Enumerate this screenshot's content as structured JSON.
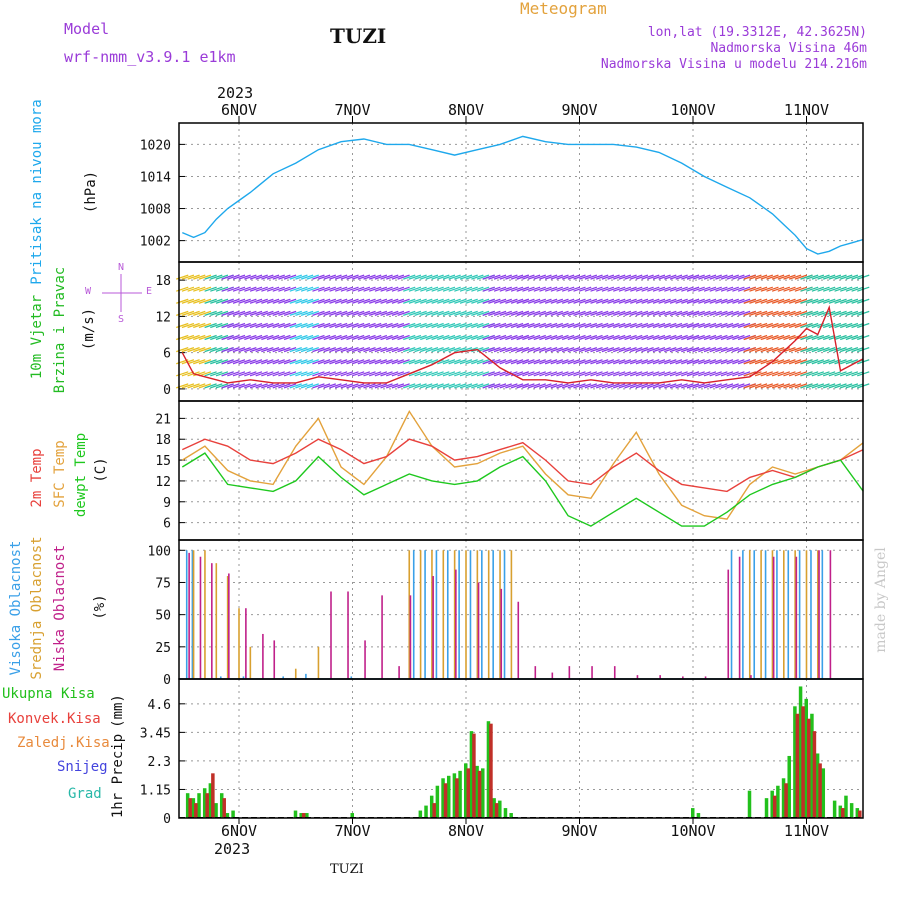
{
  "header": {
    "model_label": "Model",
    "model_name": "wrf-nmm_v3.9.1  e1km",
    "title": "TUZI",
    "chart_title": "Meteogram",
    "lonlat": "lon,lat (19.3312E, 42.3625N)",
    "altitude": "Nadmorska Visina 46m",
    "model_altitude": "Nadmorska Visina u modelu 214.216m"
  },
  "footer": {
    "station": "TUZI",
    "watermark": "made by Angel"
  },
  "colors": {
    "pressure": "#1ea8ec",
    "temp2m": "#e8413c",
    "sfc": "#e3a23c",
    "dewpt": "#1ec81e",
    "high_cloud": "#3aa0e8",
    "mid_cloud": "#d8a030",
    "low_cloud": "#c0208a",
    "precip_total": "#22c01c",
    "precip_conv": "#c03028",
    "snow": "#4444dd",
    "hail": "#28b8a8",
    "wind_label": "#22bb22",
    "purple": "#9a3bd8"
  },
  "chart_data": [
    {
      "type": "line",
      "id": "pressure",
      "ylabel_1": "Pritisak na nivou mora",
      "ylabel_2": "(hPa)",
      "ylim": [
        998,
        1024
      ],
      "yticks": [
        "1002",
        "1008",
        "1014",
        "1020"
      ],
      "x_labels": [
        "6NOV",
        "7NOV",
        "8NOV",
        "9NOV",
        "10NOV",
        "11NOV"
      ],
      "year": "2023",
      "x": [
        0,
        0.1,
        0.2,
        0.3,
        0.4,
        0.5,
        0.6,
        0.8,
        1.0,
        1.2,
        1.4,
        1.6,
        1.8,
        2.0,
        2.2,
        2.4,
        2.6,
        2.8,
        3.0,
        3.2,
        3.4,
        3.6,
        3.8,
        4.0,
        4.2,
        4.4,
        4.6,
        4.8,
        5.0,
        5.2,
        5.3,
        5.4,
        5.5,
        5.6,
        5.7,
        5.8,
        5.9,
        6.0
      ],
      "series": [
        {
          "values": [
            1003.5,
            1002.6,
            1003.5,
            1006.0,
            1008.0,
            1009.5,
            1011.0,
            1014.5,
            1016.5,
            1019.0,
            1020.5,
            1021.0,
            1020.0,
            1020.0,
            1019.0,
            1018.0,
            1019.0,
            1020.0,
            1021.5,
            1020.5,
            1020.0,
            1020.0,
            1020.0,
            1019.5,
            1018.5,
            1016.5,
            1014.0,
            1012.0,
            1010.0,
            1007.0,
            1005.0,
            1003.0,
            1000.5,
            999.5,
            1000.0,
            1001.0,
            1001.6,
            1002.2
          ]
        }
      ]
    },
    {
      "type": "line",
      "id": "wind",
      "ylabel_1": "10m Vjetar",
      "ylabel_2": "Brzina i Pravac",
      "ylabel_3": "(m/s)",
      "compass": [
        "N",
        "W",
        "E",
        "S"
      ],
      "ylim": [
        -2,
        21
      ],
      "yticks": [
        "0",
        "6",
        "12",
        "18"
      ],
      "x": [
        0,
        0.1,
        0.2,
        0.3,
        0.4,
        0.6,
        0.8,
        1.0,
        1.2,
        1.4,
        1.6,
        1.8,
        2.0,
        2.2,
        2.4,
        2.6,
        2.8,
        3.0,
        3.2,
        3.4,
        3.6,
        3.8,
        4.0,
        4.2,
        4.4,
        4.6,
        4.8,
        5.0,
        5.2,
        5.4,
        5.5,
        5.6,
        5.7,
        5.8,
        5.9,
        6.0
      ],
      "series": [
        {
          "name": "speed",
          "values": [
            6.0,
            2.5,
            2.0,
            1.5,
            1.0,
            1.5,
            1.0,
            1.0,
            2.0,
            1.5,
            1.0,
            1.0,
            2.5,
            4.0,
            6.0,
            6.5,
            3.5,
            1.5,
            1.5,
            1.0,
            1.5,
            1.0,
            1.0,
            1.0,
            1.5,
            1.0,
            1.5,
            2.0,
            4.5,
            8.0,
            10.0,
            9.0,
            13.5,
            3.0,
            4.0,
            5.0
          ]
        }
      ]
    },
    {
      "type": "line",
      "id": "temperature",
      "ylabel_1": "2m Temp",
      "ylabel_2": "SFC Temp",
      "ylabel_3": "dewpt Temp",
      "ylabel_4": "(C)",
      "ylim": [
        3.5,
        23.5
      ],
      "yticks": [
        "6",
        "9",
        "12",
        "15",
        "18",
        "21"
      ],
      "x": [
        0,
        0.2,
        0.4,
        0.6,
        0.8,
        1.0,
        1.2,
        1.4,
        1.6,
        1.8,
        2.0,
        2.2,
        2.4,
        2.6,
        2.8,
        3.0,
        3.2,
        3.4,
        3.6,
        3.8,
        4.0,
        4.2,
        4.4,
        4.6,
        4.8,
        5.0,
        5.2,
        5.4,
        5.6,
        5.8,
        6.0
      ],
      "series": [
        {
          "name": "2m Temp",
          "values": [
            16.5,
            18.0,
            17.0,
            15.0,
            14.5,
            16.0,
            18.0,
            16.5,
            14.5,
            15.5,
            18.0,
            17.0,
            15.0,
            15.5,
            16.5,
            17.5,
            15.0,
            12.0,
            11.5,
            14.0,
            16.0,
            13.5,
            11.5,
            11.0,
            10.5,
            12.5,
            13.5,
            12.5,
            14.0,
            15.0,
            16.5
          ]
        },
        {
          "name": "SFC Temp",
          "values": [
            15.0,
            17.0,
            13.5,
            12.0,
            11.5,
            17.0,
            21.0,
            14.0,
            11.5,
            15.5,
            22.0,
            17.0,
            14.0,
            14.5,
            16.0,
            17.0,
            13.0,
            10.0,
            9.5,
            14.5,
            19.0,
            13.0,
            8.5,
            7.0,
            6.5,
            11.5,
            14.0,
            13.0,
            14.0,
            15.0,
            17.5
          ]
        },
        {
          "name": "dewpt Temp",
          "values": [
            14.0,
            16.0,
            11.5,
            11.0,
            10.5,
            12.0,
            15.5,
            12.5,
            10.0,
            11.5,
            13.0,
            12.0,
            11.5,
            12.0,
            14.0,
            15.5,
            12.0,
            7.0,
            5.5,
            7.5,
            9.5,
            7.5,
            5.5,
            5.5,
            7.5,
            10.0,
            11.5,
            12.5,
            14.0,
            15.0,
            10.5
          ]
        }
      ]
    },
    {
      "type": "bar",
      "id": "cloud",
      "ylabel_1": "Visoka Oblacnost",
      "ylabel_2": "Srednja Oblacnost",
      "ylabel_3": "Niska Oblacnost",
      "ylabel_4": "(%)",
      "ylim": [
        0,
        108
      ],
      "yticks": [
        "0",
        "25",
        "50",
        "75",
        "100"
      ],
      "series": [
        {
          "name": "Visoka Oblacnost",
          "x": [
            0.05,
            0.1,
            0.35,
            0.55,
            0.9,
            1.1,
            1.5,
            2.05,
            2.15,
            2.25,
            2.35,
            2.45,
            2.55,
            2.65,
            2.75,
            2.85,
            4.85,
            4.95,
            5.05,
            5.15,
            5.25,
            5.35,
            5.45,
            5.55,
            5.65
          ],
          "values": [
            100,
            100,
            2,
            2,
            2,
            4,
            2,
            100,
            100,
            100,
            100,
            100,
            100,
            100,
            100,
            100,
            100,
            100,
            100,
            100,
            100,
            100,
            100,
            100,
            100
          ]
        },
        {
          "name": "Srednja Oblacnost",
          "x": [
            0.1,
            0.2,
            0.3,
            0.4,
            0.5,
            0.6,
            1.0,
            1.2,
            2.0,
            2.1,
            2.2,
            2.3,
            2.4,
            2.5,
            2.6,
            2.7,
            2.8,
            2.9,
            5.0,
            5.1,
            5.2,
            5.3,
            5.4,
            5.5,
            5.6
          ],
          "values": [
            100,
            100,
            90,
            80,
            55,
            25,
            8,
            25,
            100,
            100,
            100,
            100,
            100,
            100,
            100,
            100,
            100,
            100,
            100,
            100,
            100,
            100,
            100,
            100,
            100
          ]
        },
        {
          "name": "Niska Oblacnost",
          "x": [
            0.05,
            0.15,
            0.25,
            0.4,
            0.55,
            0.7,
            0.8,
            1.3,
            1.45,
            1.6,
            1.75,
            1.9,
            2.0,
            2.2,
            2.4,
            2.6,
            2.8,
            2.95,
            3.1,
            3.25,
            3.4,
            3.6,
            3.8,
            4.0,
            4.2,
            4.4,
            4.6,
            4.8,
            4.9,
            5.0,
            5.2,
            5.4,
            5.6,
            5.7
          ],
          "values": [
            98,
            95,
            90,
            82,
            55,
            35,
            30,
            68,
            68,
            30,
            65,
            10,
            65,
            80,
            85,
            75,
            70,
            60,
            10,
            5,
            10,
            10,
            10,
            3,
            3,
            2,
            2,
            85,
            95,
            3,
            95,
            95,
            100,
            100
          ]
        }
      ]
    },
    {
      "type": "bar",
      "id": "precip",
      "ylabel_1": "1hr Precip",
      "ylabel_2": "(mm)",
      "legend": [
        "Ukupna Kisa",
        "Konvek.Kisa",
        "Zaledj.Kisa",
        "Snijeg",
        "Grad"
      ],
      "ylim": [
        0,
        5.6
      ],
      "yticks": [
        "0",
        "1.15",
        "2.3",
        "3.45",
        "4.6"
      ],
      "x_labels": [
        "6NOV",
        "7NOV",
        "8NOV",
        "9NOV",
        "10NOV",
        "11NOV"
      ],
      "year": "2023",
      "series": [
        {
          "name": "Ukupna Kisa",
          "x": [
            0.05,
            0.1,
            0.15,
            0.2,
            0.25,
            0.3,
            0.35,
            0.4,
            0.45,
            1.0,
            1.05,
            1.1,
            1.5,
            2.1,
            2.15,
            2.2,
            2.25,
            2.3,
            2.35,
            2.4,
            2.45,
            2.5,
            2.55,
            2.6,
            2.65,
            2.7,
            2.75,
            2.8,
            2.85,
            2.9,
            4.5,
            4.55,
            5.0,
            5.15,
            5.2,
            5.25,
            5.3,
            5.35,
            5.4,
            5.45,
            5.5,
            5.55,
            5.6,
            5.65,
            5.75,
            5.8,
            5.85,
            5.9,
            5.95
          ],
          "values": [
            1.0,
            0.8,
            1.0,
            1.2,
            1.4,
            0.6,
            1.0,
            0.2,
            0.3,
            0.3,
            0.2,
            0.2,
            0.2,
            0.3,
            0.5,
            0.9,
            1.3,
            1.6,
            1.7,
            1.8,
            1.9,
            2.2,
            3.5,
            2.1,
            2.0,
            3.9,
            0.8,
            0.7,
            0.4,
            0.2,
            0.4,
            0.2,
            1.1,
            0.8,
            1.1,
            1.3,
            1.6,
            2.5,
            4.5,
            5.3,
            4.8,
            4.2,
            2.6,
            2.0,
            0.7,
            0.5,
            0.9,
            0.6,
            0.4
          ]
        },
        {
          "name": "Konvek.Kisa",
          "x": [
            0.05,
            0.1,
            0.2,
            0.25,
            0.35,
            1.05,
            2.2,
            2.3,
            2.4,
            2.5,
            2.55,
            2.6,
            2.7,
            2.75,
            5.2,
            5.3,
            5.4,
            5.45,
            5.5,
            5.55,
            5.6,
            5.8,
            5.95
          ],
          "values": [
            0.8,
            0.6,
            1.0,
            1.8,
            0.8,
            0.2,
            0.6,
            1.4,
            1.6,
            2.0,
            3.4,
            1.9,
            3.8,
            0.6,
            0.9,
            1.4,
            4.2,
            4.5,
            4.0,
            3.5,
            2.2,
            0.4,
            0.3
          ]
        }
      ]
    }
  ]
}
